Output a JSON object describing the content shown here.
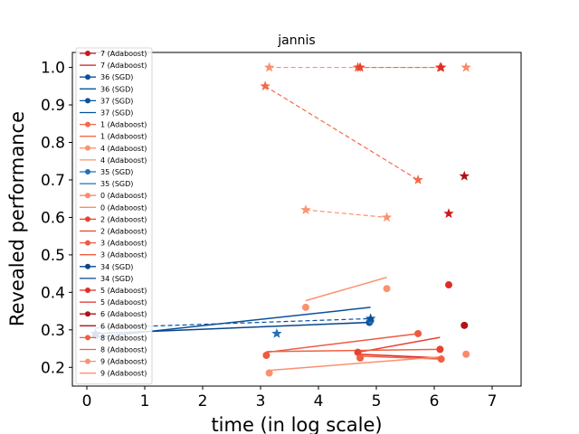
{
  "chart_data": {
    "type": "line",
    "title": "jannis",
    "xlabel": "time (in log scale)",
    "ylabel": "Revealed performance",
    "xlim": [
      -0.25,
      7.5
    ],
    "ylim": [
      0.15,
      1.04
    ],
    "xticks": [
      0,
      1,
      2,
      3,
      4,
      5,
      6,
      7
    ],
    "yticks": [
      0.2,
      0.3,
      0.4,
      0.5,
      0.6,
      0.7,
      0.8,
      0.9,
      1.0
    ],
    "grid": false,
    "legend_position": "upper-left",
    "legend": [
      {
        "label": "7 (Adaboost)",
        "color": "#cb181d",
        "kind": "marker"
      },
      {
        "label": "7 (Adaboost)",
        "color": "#cb181d",
        "kind": "line"
      },
      {
        "label": "36 (SGD)",
        "color": "#08519c",
        "kind": "marker"
      },
      {
        "label": "36 (SGD)",
        "color": "#08519c",
        "kind": "line"
      },
      {
        "label": "37 (SGD)",
        "color": "#08519c",
        "kind": "marker"
      },
      {
        "label": "37 (SGD)",
        "color": "#08519c",
        "kind": "line"
      },
      {
        "label": "1 (Adaboost)",
        "color": "#f4694a",
        "kind": "marker"
      },
      {
        "label": "1 (Adaboost)",
        "color": "#f4694a",
        "kind": "line"
      },
      {
        "label": "4 (Adaboost)",
        "color": "#fc9272",
        "kind": "marker"
      },
      {
        "label": "4 (Adaboost)",
        "color": "#fc9272",
        "kind": "line"
      },
      {
        "label": "35 (SGD)",
        "color": "#2171b5",
        "kind": "marker"
      },
      {
        "label": "35 (SGD)",
        "color": "#2171b5",
        "kind": "line"
      },
      {
        "label": "0 (Adaboost)",
        "color": "#fb8a6a",
        "kind": "marker"
      },
      {
        "label": "0 (Adaboost)",
        "color": "#fb8a6a",
        "kind": "line"
      },
      {
        "label": "2 (Adaboost)",
        "color": "#e8412f",
        "kind": "marker"
      },
      {
        "label": "2 (Adaboost)",
        "color": "#e8412f",
        "kind": "line"
      },
      {
        "label": "3 (Adaboost)",
        "color": "#ef5a40",
        "kind": "marker"
      },
      {
        "label": "3 (Adaboost)",
        "color": "#ef5a40",
        "kind": "line"
      },
      {
        "label": "34 (SGD)",
        "color": "#08458a",
        "kind": "marker"
      },
      {
        "label": "34 (SGD)",
        "color": "#08458a",
        "kind": "line"
      },
      {
        "label": "5 (Adaboost)",
        "color": "#de2d26",
        "kind": "marker"
      },
      {
        "label": "5 (Adaboost)",
        "color": "#de2d26",
        "kind": "line"
      },
      {
        "label": "6 (Adaboost)",
        "color": "#b01217",
        "kind": "marker"
      },
      {
        "label": "6 (Adaboost)",
        "color": "#b01217",
        "kind": "line"
      },
      {
        "label": "8 (Adaboost)",
        "color": "#f0603f",
        "kind": "marker"
      },
      {
        "label": "8 (Adaboost)",
        "color": "#f0603f",
        "kind": "line"
      },
      {
        "label": "9 (Adaboost)",
        "color": "#fb9070",
        "kind": "marker"
      },
      {
        "label": "9 (Adaboost)",
        "color": "#fb9070",
        "kind": "line"
      }
    ],
    "solid_lines": [
      {
        "color": "#fc9272",
        "x": [
          3.78,
          5.18
        ],
        "y": [
          0.378,
          0.44
        ]
      },
      {
        "color": "#08519c",
        "x": [
          0.15,
          4.9
        ],
        "y": [
          0.28,
          0.36
        ]
      },
      {
        "color": "#08458a",
        "x": [
          0.15,
          4.9
        ],
        "y": [
          0.29,
          0.32
        ]
      },
      {
        "color": "#ef5a40",
        "x": [
          3.1,
          5.72
        ],
        "y": [
          0.24,
          0.29
        ]
      },
      {
        "color": "#e8412f",
        "x": [
          4.68,
          6.1
        ],
        "y": [
          0.24,
          0.28
        ]
      },
      {
        "color": "#de2d26",
        "x": [
          4.68,
          6.12
        ],
        "y": [
          0.235,
          0.225
        ]
      },
      {
        "color": "#f0603f",
        "x": [
          3.1,
          6.1
        ],
        "y": [
          0.242,
          0.248
        ]
      },
      {
        "color": "#f0603f",
        "x": [
          4.72,
          6.12
        ],
        "y": [
          0.23,
          0.222
        ]
      },
      {
        "color": "#fb9070",
        "x": [
          3.15,
          6.12
        ],
        "y": [
          0.192,
          0.228
        ]
      }
    ],
    "dashed_lines": [
      {
        "color": "#08519c",
        "x": [
          0.15,
          4.9
        ],
        "y": [
          0.305,
          0.33
        ]
      },
      {
        "color": "#fb9070",
        "x": [
          3.15,
          6.1
        ],
        "y": [
          1.0,
          1.0
        ]
      },
      {
        "color": "#f4694a",
        "x": [
          4.68,
          6.12
        ],
        "y": [
          1.0,
          1.0
        ]
      },
      {
        "color": "#f4694a",
        "x": [
          3.08,
          5.72
        ],
        "y": [
          0.95,
          0.7
        ]
      },
      {
        "color": "#fc9272",
        "x": [
          3.78,
          5.18
        ],
        "y": [
          0.62,
          0.6
        ]
      }
    ],
    "circle_points": [
      {
        "color": "#fc9272",
        "x": 3.78,
        "y": 0.36
      },
      {
        "color": "#fc9272",
        "x": 5.18,
        "y": 0.41
      },
      {
        "color": "#de2d26",
        "x": 6.25,
        "y": 0.42
      },
      {
        "color": "#b01217",
        "x": 6.52,
        "y": 0.312
      },
      {
        "color": "#08519c",
        "x": 4.88,
        "y": 0.32
      },
      {
        "color": "#2171b5",
        "x": 4.9,
        "y": 0.325
      },
      {
        "color": "#ef5a40",
        "x": 5.72,
        "y": 0.29
      },
      {
        "color": "#ef5a40",
        "x": 3.1,
        "y": 0.232
      },
      {
        "color": "#e8412f",
        "x": 4.68,
        "y": 0.24
      },
      {
        "color": "#e8412f",
        "x": 6.1,
        "y": 0.248
      },
      {
        "color": "#f0603f",
        "x": 4.72,
        "y": 0.225
      },
      {
        "color": "#f0603f",
        "x": 6.12,
        "y": 0.222
      },
      {
        "color": "#fb8a6a",
        "x": 6.55,
        "y": 0.235
      },
      {
        "color": "#fb9070",
        "x": 3.15,
        "y": 0.185
      },
      {
        "color": "#08519c",
        "x": 0.15,
        "y": 0.285
      }
    ],
    "star_points": [
      {
        "color": "#fb9070",
        "x": 3.15,
        "y": 1.0
      },
      {
        "color": "#ef5a40",
        "x": 4.68,
        "y": 1.0
      },
      {
        "color": "#e8412f",
        "x": 4.72,
        "y": 1.0
      },
      {
        "color": "#f0603f",
        "x": 6.1,
        "y": 1.0
      },
      {
        "color": "#de2d26",
        "x": 6.12,
        "y": 1.0
      },
      {
        "color": "#fb8a6a",
        "x": 6.55,
        "y": 1.0
      },
      {
        "color": "#f4694a",
        "x": 3.08,
        "y": 0.95
      },
      {
        "color": "#f4694a",
        "x": 5.72,
        "y": 0.7
      },
      {
        "color": "#b01217",
        "x": 6.52,
        "y": 0.71
      },
      {
        "color": "#fc9272",
        "x": 3.78,
        "y": 0.62
      },
      {
        "color": "#fc9272",
        "x": 5.18,
        "y": 0.6
      },
      {
        "color": "#cb181d",
        "x": 6.25,
        "y": 0.61
      },
      {
        "color": "#08519c",
        "x": 4.9,
        "y": 0.33
      },
      {
        "color": "#2171b5",
        "x": 3.28,
        "y": 0.29
      },
      {
        "color": "#08519c",
        "x": 0.15,
        "y": 0.29
      }
    ]
  }
}
